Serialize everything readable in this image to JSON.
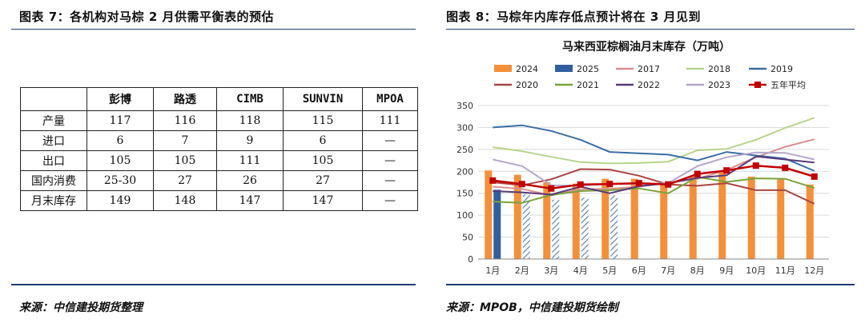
{
  "left_panel": {
    "title": "图表 7：各机构对马棕 2 月供需平衡表的预估",
    "source": "来源：中信建投期货整理",
    "table": {
      "headers": [
        "",
        "彭博",
        "路透",
        "CIMB",
        "SUNVIN",
        "MPOA"
      ],
      "rows": [
        [
          "产量",
          "117",
          "116",
          "118",
          "115",
          "111"
        ],
        [
          "进口",
          "6",
          "7",
          "9",
          "6",
          "—"
        ],
        [
          "出口",
          "105",
          "105",
          "111",
          "105",
          "—"
        ],
        [
          "国内消费",
          "25-30",
          "27",
          "26",
          "27",
          "—"
        ],
        [
          "月末库存",
          "149",
          "148",
          "147",
          "147",
          "—"
        ]
      ]
    }
  },
  "right_panel": {
    "title": "图表 8：马棕年内库存低点预计将在 3 月见到",
    "source": "来源：MPOB，中信建投期货绘制"
  },
  "chart_data": {
    "type": "bar",
    "title": "马来西亚棕榈油月末库存（万吨）",
    "categories": [
      "1月",
      "2月",
      "3月",
      "4月",
      "5月",
      "6月",
      "7月",
      "8月",
      "9月",
      "10月",
      "11月",
      "12月"
    ],
    "ylim": [
      0,
      350
    ],
    "yticks": [
      0,
      50,
      100,
      150,
      200,
      250,
      300,
      350
    ],
    "grid": true,
    "legend_position": "top",
    "series": [
      {
        "name": "2024",
        "kind": "bar",
        "color": "#f4903a",
        "values": [
          202,
          192,
          175,
          172,
          183,
          183,
          173,
          188,
          201,
          188,
          184,
          170
        ]
      },
      {
        "name": "2025",
        "kind": "bar",
        "color": "#2f5f9e",
        "values": [
          158,
          null,
          null,
          null,
          null,
          null,
          null,
          null,
          null,
          null,
          null,
          null
        ]
      },
      {
        "name": "2017",
        "kind": "line",
        "color": "#d98f8f",
        "values": [
          165,
          160,
          145,
          159,
          160,
          165,
          174,
          183,
          203,
          232,
          256,
          273
        ]
      },
      {
        "name": "2018",
        "kind": "line",
        "color": "#b8d48a",
        "values": [
          255,
          246,
          233,
          221,
          218,
          219,
          222,
          248,
          251,
          272,
          299,
          322
        ]
      },
      {
        "name": "2019",
        "kind": "line",
        "color": "#3a6ea5",
        "values": [
          300,
          305,
          292,
          272,
          244,
          241,
          238,
          225,
          244,
          236,
          229,
          201
        ]
      },
      {
        "name": "2020",
        "kind": "line",
        "color": "#a94442",
        "values": [
          175,
          168,
          182,
          205,
          204,
          190,
          170,
          167,
          173,
          157,
          157,
          126
        ]
      },
      {
        "name": "2021",
        "kind": "line",
        "color": "#7aa33a",
        "values": [
          131,
          128,
          146,
          155,
          157,
          161,
          150,
          187,
          176,
          184,
          183,
          162
        ]
      },
      {
        "name": "2022",
        "kind": "line",
        "color": "#5a3a7a",
        "values": [
          155,
          152,
          147,
          165,
          150,
          166,
          173,
          185,
          191,
          234,
          227,
          220
        ]
      },
      {
        "name": "2023",
        "kind": "line",
        "color": "#b5a7cc",
        "values": [
          227,
          212,
          168,
          167,
          172,
          171,
          173,
          212,
          232,
          243,
          242,
          227
        ]
      },
      {
        "name": "五年平均",
        "kind": "line-marker",
        "color": "#c00000",
        "values": [
          179,
          171,
          161,
          170,
          171,
          173,
          170,
          194,
          202,
          213,
          208,
          188
        ]
      }
    ],
    "hatched_bars": {
      "name": "2025",
      "color": "#5b84bb",
      "values": [
        null,
        148,
        135,
        140,
        145,
        null,
        null,
        null,
        null,
        null,
        null,
        null
      ]
    }
  }
}
